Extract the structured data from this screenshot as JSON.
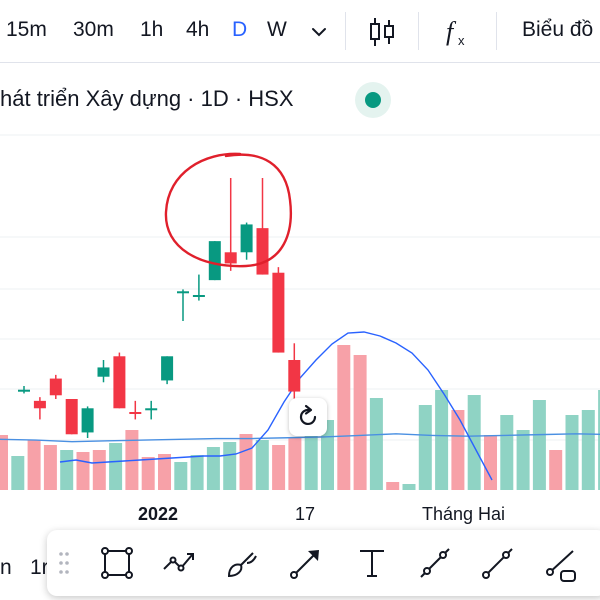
{
  "toolbar": {
    "intervals": [
      "15m",
      "30m",
      "1h",
      "4h",
      "D",
      "W"
    ],
    "active_interval": "D",
    "interval_menu_icon": "chevron-down-icon",
    "chart_type_icon": "candlestick-icon",
    "indicators_icon": "function-fx-icon",
    "chart_style_label": "Biểu đồ"
  },
  "legend": {
    "title": "hát triển Xây dựng · 1D · HSX",
    "status_color": "#089981"
  },
  "chart": {
    "x_labels": [
      "2022",
      "17",
      "Tháng Hai"
    ],
    "reset_icon": "reset-view-icon",
    "colors": {
      "up": "#089981",
      "down": "#f23645",
      "volume_up": "#8fd3c4",
      "volume_down": "#f7a1a8",
      "ma_line": "#2962ff",
      "annotation": "#e0202c",
      "grid": "#eef0f3"
    }
  },
  "chart_data": {
    "type": "candlestick",
    "title": "",
    "xlabel": "",
    "ylabel": "",
    "candles": [
      {
        "o": 46.6,
        "h": 46.8,
        "l": 46.4,
        "c": 46.6
      },
      {
        "o": 46.0,
        "h": 46.2,
        "l": 45.0,
        "c": 45.6
      },
      {
        "o": 47.2,
        "h": 47.4,
        "l": 46.1,
        "c": 46.3
      },
      {
        "o": 46.1,
        "h": 46.1,
        "l": 44.2,
        "c": 44.2
      },
      {
        "o": 44.3,
        "h": 45.7,
        "l": 44.0,
        "c": 45.6
      },
      {
        "o": 47.3,
        "h": 48.2,
        "l": 47.0,
        "c": 47.8
      },
      {
        "o": 48.4,
        "h": 48.6,
        "l": 45.6,
        "c": 45.6
      },
      {
        "o": 45.4,
        "h": 46.0,
        "l": 45.0,
        "c": 45.3
      },
      {
        "o": 45.6,
        "h": 46.0,
        "l": 45.0,
        "c": 45.6
      },
      {
        "o": 47.1,
        "h": 48.4,
        "l": 46.9,
        "c": 48.4
      },
      {
        "o": 51.9,
        "h": 52.0,
        "l": 50.3,
        "c": 51.9
      },
      {
        "o": 51.7,
        "h": 52.8,
        "l": 51.4,
        "c": 51.7
      },
      {
        "o": 52.5,
        "h": 54.6,
        "l": 52.5,
        "c": 54.6
      },
      {
        "o": 54.0,
        "h": 58.0,
        "l": 53.0,
        "c": 53.4
      },
      {
        "o": 54.0,
        "h": 55.6,
        "l": 53.6,
        "c": 55.5
      },
      {
        "o": 55.3,
        "h": 58.0,
        "l": 52.8,
        "c": 52.8
      },
      {
        "o": 52.9,
        "h": 53.2,
        "l": 48.6,
        "c": 48.6
      },
      {
        "o": 48.2,
        "h": 49.1,
        "l": 46.0,
        "c": 46.5
      }
    ],
    "volumes": [
      {
        "v": 0.55,
        "up": false
      },
      {
        "v": 0.34,
        "up": true
      },
      {
        "v": 0.5,
        "up": false
      },
      {
        "v": 0.45,
        "up": false
      },
      {
        "v": 0.4,
        "up": true
      },
      {
        "v": 0.38,
        "up": false
      },
      {
        "v": 0.4,
        "up": false
      },
      {
        "v": 0.47,
        "up": true
      },
      {
        "v": 0.6,
        "up": false
      },
      {
        "v": 0.33,
        "up": false
      },
      {
        "v": 0.36,
        "up": false
      },
      {
        "v": 0.28,
        "up": true
      },
      {
        "v": 0.35,
        "up": true
      },
      {
        "v": 0.43,
        "up": true
      },
      {
        "v": 0.48,
        "up": true
      },
      {
        "v": 0.56,
        "up": false
      },
      {
        "v": 0.5,
        "up": true
      },
      {
        "v": 0.45,
        "up": false
      },
      {
        "v": 0.52,
        "up": false
      },
      {
        "v": 0.58,
        "up": true
      },
      {
        "v": 0.7,
        "up": true
      },
      {
        "v": 1.45,
        "up": false
      },
      {
        "v": 1.35,
        "up": false
      },
      {
        "v": 0.92,
        "up": true
      },
      {
        "v": 0.08,
        "up": false
      },
      {
        "v": 0.06,
        "up": true
      },
      {
        "v": 0.85,
        "up": true
      },
      {
        "v": 1.0,
        "up": true
      },
      {
        "v": 0.8,
        "up": false
      },
      {
        "v": 0.95,
        "up": true
      },
      {
        "v": 0.55,
        "up": false
      },
      {
        "v": 0.75,
        "up": true
      },
      {
        "v": 0.6,
        "up": true
      },
      {
        "v": 0.9,
        "up": true
      },
      {
        "v": 0.4,
        "up": false
      },
      {
        "v": 0.75,
        "up": true
      },
      {
        "v": 0.8,
        "up": true
      },
      {
        "v": 1.0,
        "up": true
      },
      {
        "v": 0.7,
        "up": true
      },
      {
        "v": 0.4,
        "up": false
      },
      {
        "v": 0.5,
        "up": false
      },
      {
        "v": 0.65,
        "up": true
      },
      {
        "v": 0.55,
        "up": true
      },
      {
        "v": 0.6,
        "up": false
      }
    ],
    "moving_average": [
      0.28,
      0.3,
      0.27,
      0.28,
      0.29,
      0.3,
      0.31,
      0.32,
      0.33,
      0.34,
      0.34,
      0.36,
      0.42,
      0.6,
      0.88,
      1.12,
      1.3,
      1.46,
      1.57,
      1.58,
      1.54,
      1.47,
      1.37,
      1.2,
      0.96,
      0.7,
      0.4,
      0.1
    ],
    "long_average": [
      0.65,
      0.64,
      0.62,
      0.63,
      0.64,
      0.65,
      0.66,
      0.66,
      0.67,
      0.68,
      0.7,
      0.72,
      0.7,
      0.69,
      0.7,
      0.71,
      0.72,
      0.71
    ]
  },
  "drawing_tools": [
    {
      "name": "rectangle-tool-icon"
    },
    {
      "name": "path-tool-icon"
    },
    {
      "name": "brush-tool-icon"
    },
    {
      "name": "arrow-tool-icon"
    },
    {
      "name": "text-tool-icon"
    },
    {
      "name": "trend-line-tool-icon"
    },
    {
      "name": "ray-tool-icon"
    },
    {
      "name": "extended-line-tool-icon"
    }
  ],
  "left_strip": [
    "n",
    "1r"
  ]
}
